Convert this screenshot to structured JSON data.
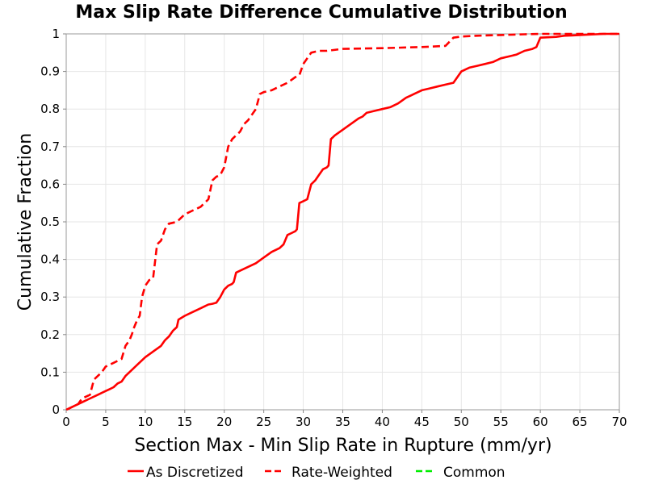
{
  "chart_data": {
    "type": "line",
    "title": "Max Slip Rate Difference Cumulative Distribution",
    "xlabel": "Section Max - Min Slip Rate in Rupture (mm/yr)",
    "ylabel": "Cumulative Fraction",
    "xlim": [
      0,
      70
    ],
    "ylim": [
      0,
      1
    ],
    "xticks": [
      0,
      5,
      10,
      15,
      20,
      25,
      30,
      35,
      40,
      45,
      50,
      55,
      60,
      65,
      70
    ],
    "yticks": [
      0,
      0.1,
      0.2,
      0.3,
      0.4,
      0.5,
      0.6,
      0.7,
      0.8,
      0.9,
      1
    ],
    "grid": true,
    "legend_position": "bottom",
    "series": [
      {
        "name": "As Discretized",
        "color": "#ff0000",
        "dash": "solid",
        "x": [
          0,
          1,
          2,
          3,
          4,
          5,
          5.5,
          6,
          6.5,
          7,
          7.5,
          8,
          9,
          10,
          11,
          12,
          12.5,
          13,
          13.5,
          14,
          14.2,
          15,
          16,
          17,
          18,
          18.5,
          19,
          19.5,
          20,
          20.5,
          21,
          21.2,
          21.5,
          22,
          23,
          24,
          25,
          26,
          27,
          27.5,
          28,
          28.5,
          29,
          29.2,
          29.5,
          30,
          30.5,
          31,
          31.5,
          32,
          32.5,
          33,
          33.2,
          33.5,
          34,
          35,
          36,
          37,
          37.5,
          38,
          39,
          40,
          41,
          42,
          43,
          44,
          45,
          46,
          47,
          48,
          49,
          49.5,
          50,
          51,
          52,
          53,
          54,
          55,
          56,
          57,
          58,
          59,
          59.5,
          60,
          62,
          63,
          64,
          65,
          66,
          67,
          68,
          69,
          70
        ],
        "y": [
          0,
          0.01,
          0.02,
          0.03,
          0.04,
          0.05,
          0.055,
          0.06,
          0.07,
          0.075,
          0.09,
          0.1,
          0.12,
          0.14,
          0.155,
          0.17,
          0.185,
          0.195,
          0.21,
          0.22,
          0.24,
          0.25,
          0.26,
          0.27,
          0.28,
          0.282,
          0.285,
          0.3,
          0.32,
          0.33,
          0.335,
          0.34,
          0.365,
          0.37,
          0.38,
          0.39,
          0.405,
          0.42,
          0.43,
          0.44,
          0.465,
          0.47,
          0.475,
          0.48,
          0.55,
          0.555,
          0.56,
          0.6,
          0.61,
          0.625,
          0.64,
          0.645,
          0.65,
          0.72,
          0.73,
          0.745,
          0.76,
          0.775,
          0.78,
          0.79,
          0.795,
          0.8,
          0.805,
          0.815,
          0.83,
          0.84,
          0.85,
          0.855,
          0.86,
          0.865,
          0.87,
          0.885,
          0.9,
          0.91,
          0.915,
          0.92,
          0.925,
          0.935,
          0.94,
          0.945,
          0.955,
          0.96,
          0.965,
          0.99,
          0.992,
          0.995,
          0.996,
          0.997,
          0.998,
          0.999,
          1.0,
          1.0,
          1.0
        ]
      },
      {
        "name": "Rate-Weighted",
        "color": "#ff0000",
        "dash": "dashed",
        "x": [
          0,
          0.5,
          1,
          1.5,
          2,
          2.5,
          3,
          3.5,
          4,
          4.5,
          5,
          5.5,
          6,
          6.5,
          7,
          7.5,
          8,
          8.3,
          8.6,
          9,
          9.3,
          9.6,
          10,
          10.5,
          11,
          11.5,
          12,
          12.5,
          13,
          14,
          15,
          16,
          17,
          17.5,
          18,
          18.5,
          19,
          19.5,
          20,
          20.5,
          21,
          22,
          22.5,
          23,
          24,
          24.5,
          25,
          26,
          27,
          28,
          29,
          29.5,
          30,
          30.5,
          31,
          32,
          33,
          35,
          40,
          45,
          48,
          49,
          50,
          52,
          55,
          58,
          60,
          62,
          65,
          70
        ],
        "y": [
          0,
          0.005,
          0.01,
          0.015,
          0.03,
          0.035,
          0.04,
          0.08,
          0.09,
          0.1,
          0.115,
          0.12,
          0.125,
          0.13,
          0.135,
          0.17,
          0.185,
          0.2,
          0.22,
          0.24,
          0.25,
          0.3,
          0.33,
          0.345,
          0.35,
          0.44,
          0.45,
          0.48,
          0.495,
          0.5,
          0.52,
          0.53,
          0.54,
          0.55,
          0.56,
          0.61,
          0.62,
          0.625,
          0.645,
          0.7,
          0.72,
          0.74,
          0.76,
          0.77,
          0.8,
          0.84,
          0.845,
          0.85,
          0.86,
          0.87,
          0.885,
          0.89,
          0.92,
          0.935,
          0.95,
          0.955,
          0.955,
          0.96,
          0.962,
          0.965,
          0.968,
          0.99,
          0.993,
          0.995,
          0.997,
          0.999,
          1.0,
          1.0,
          1.0,
          1.0
        ]
      },
      {
        "name": "Common",
        "color": "#00ee00",
        "dash": "dashed",
        "x": [],
        "y": []
      }
    ]
  }
}
